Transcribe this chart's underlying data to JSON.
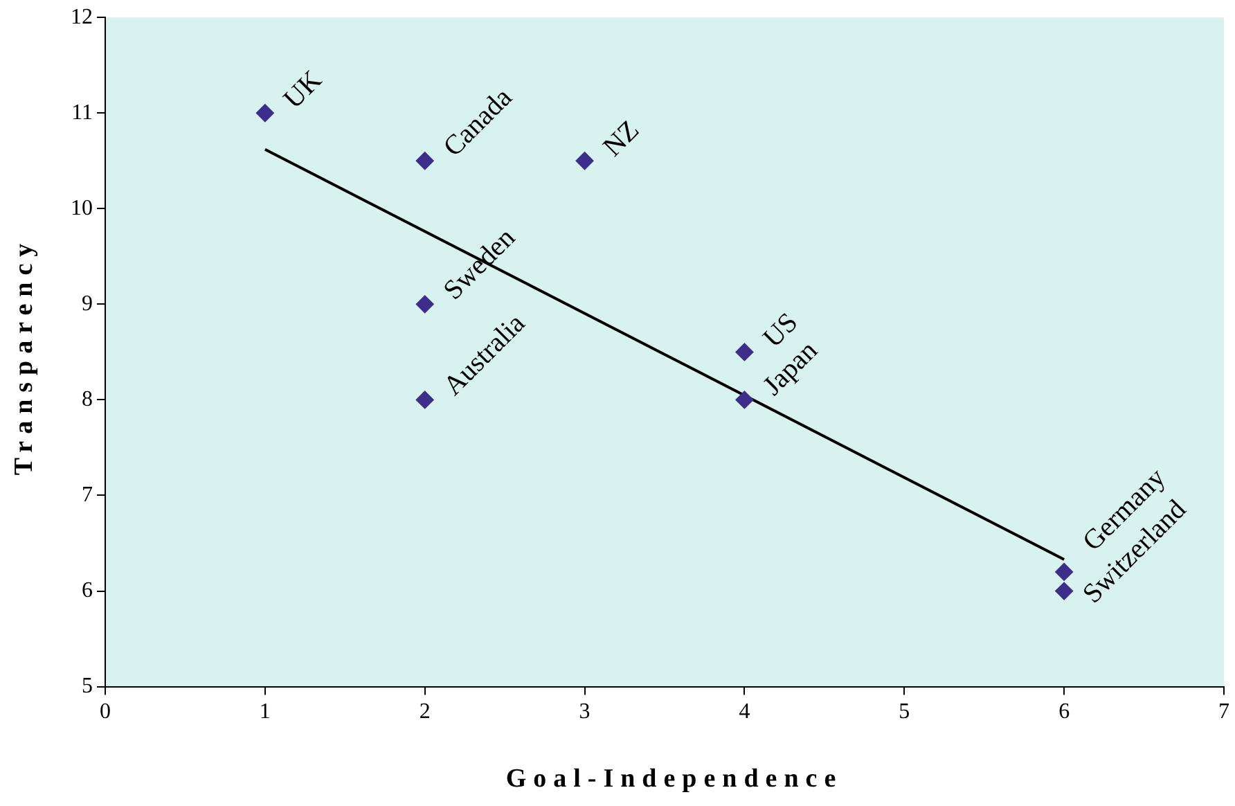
{
  "chart_data": {
    "type": "scatter",
    "xlabel": "Goal-Independence",
    "ylabel": "Transparency",
    "xlim": [
      0,
      7
    ],
    "xticks": [
      0,
      1,
      2,
      3,
      4,
      5,
      6,
      7
    ],
    "ylim": [
      5,
      12
    ],
    "yticks": [
      5,
      6,
      7,
      8,
      9,
      10,
      11,
      12
    ],
    "series": [
      {
        "type": "scatter",
        "color": "#3d2e8c",
        "marker": "diamond",
        "x": [
          1,
          2,
          3,
          2,
          2,
          4,
          4,
          6,
          6
        ],
        "values": [
          11,
          10.5,
          10.5,
          9,
          8,
          8.5,
          8,
          6.2,
          6
        ]
      },
      {
        "type": "line",
        "color": "#000000",
        "marker": "none",
        "x": [
          1,
          6
        ],
        "values": [
          10.62,
          6.33
        ]
      }
    ],
    "annotations": [
      {
        "text": "UK",
        "x": 1,
        "y": 11
      },
      {
        "text": "Canada",
        "x": 2,
        "y": 10.5
      },
      {
        "text": "NZ",
        "x": 3,
        "y": 10.5
      },
      {
        "text": "Sweden",
        "x": 2,
        "y": 9
      },
      {
        "text": "Australia",
        "x": 2,
        "y": 8
      },
      {
        "text": "US",
        "x": 4,
        "y": 8.5
      },
      {
        "text": "Japan",
        "x": 4,
        "y": 8
      },
      {
        "text": "Germany",
        "x": 6,
        "y": 6.2
      },
      {
        "text": "Switzerland",
        "x": 6,
        "y": 6
      }
    ]
  }
}
